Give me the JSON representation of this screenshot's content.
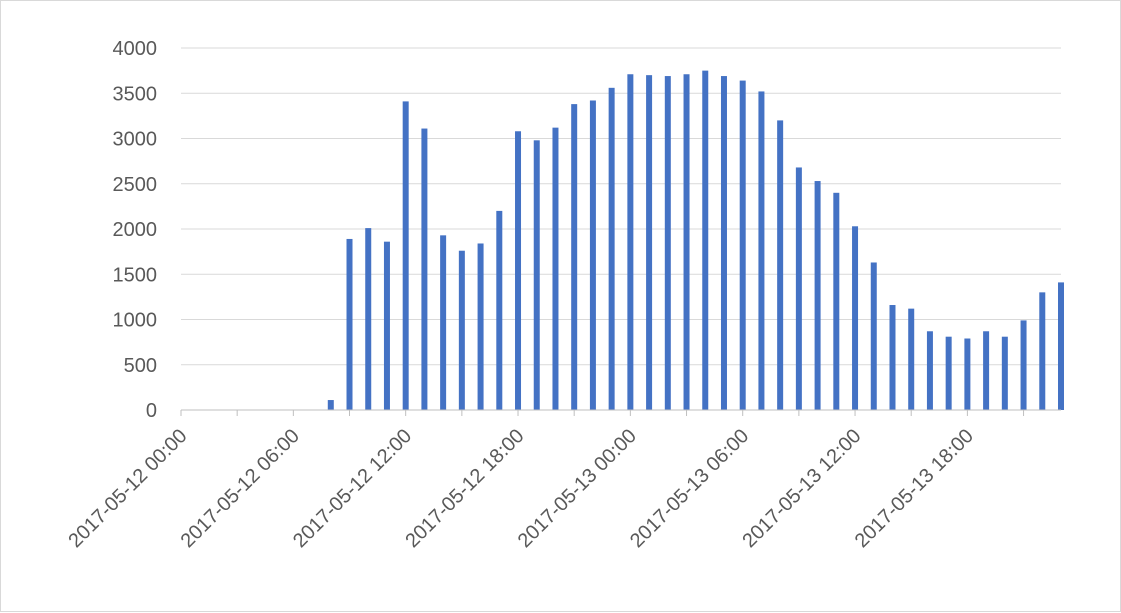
{
  "chart_data": {
    "type": "bar",
    "title": "",
    "xlabel": "",
    "ylabel": "",
    "ylim": [
      0,
      4000
    ],
    "y_ticks": [
      "0",
      "500",
      "1000",
      "1500",
      "2000",
      "2500",
      "3000",
      "3500",
      "4000"
    ],
    "x_tick_labels": [
      "2017-05-12 00:00",
      "2017-05-12 06:00",
      "2017-05-12 12:00",
      "2017-05-12 18:00",
      "2017-05-13 00:00",
      "2017-05-13 06:00",
      "2017-05-13 12:00",
      "2017-05-13 18:00"
    ],
    "x_start": "2017-05-12 00:00",
    "x_step_hours": 1,
    "grid": true,
    "legend": "none",
    "bar_color": "#4472C4",
    "values": [
      0,
      0,
      0,
      0,
      0,
      0,
      0,
      0,
      110,
      1890,
      2010,
      1860,
      3410,
      3110,
      1930,
      1760,
      1840,
      2200,
      3080,
      2980,
      3120,
      3380,
      3420,
      3560,
      3710,
      3700,
      3690,
      3710,
      3750,
      3690,
      3640,
      3520,
      3200,
      2680,
      2530,
      2400,
      2030,
      1630,
      1160,
      1120,
      870,
      810,
      790,
      870,
      810,
      990,
      1300,
      1410
    ]
  }
}
